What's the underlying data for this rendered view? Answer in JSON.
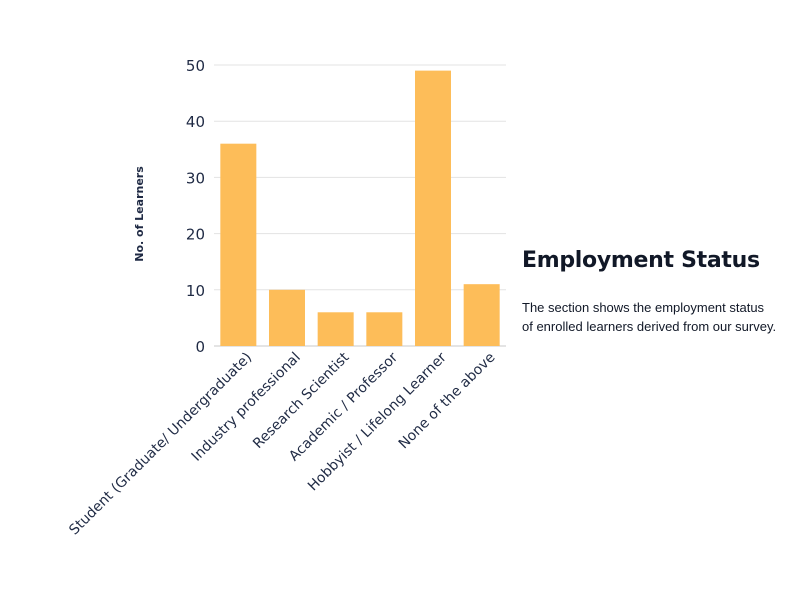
{
  "chart_data": {
    "type": "bar",
    "title": "",
    "xlabel": "",
    "ylabel": "No. of Learners",
    "categories": [
      "Student (Graduate/ Undergraduate)",
      "Industry professional",
      "Research Scientist",
      "Academic / Professor",
      "Hobbyist / Lifelong Learner",
      "None of the above"
    ],
    "values": [
      36,
      10,
      6,
      6,
      49,
      11
    ],
    "ylim": [
      0,
      50
    ],
    "yticks": [
      0,
      10,
      20,
      30,
      40,
      50
    ],
    "grid": true,
    "bar_color": "#FDBD59",
    "legend": "none"
  },
  "panel": {
    "title": "Employment Status",
    "description_line1": "The section shows the employment status",
    "description_line2": "of enrolled learners derived from our survey."
  }
}
